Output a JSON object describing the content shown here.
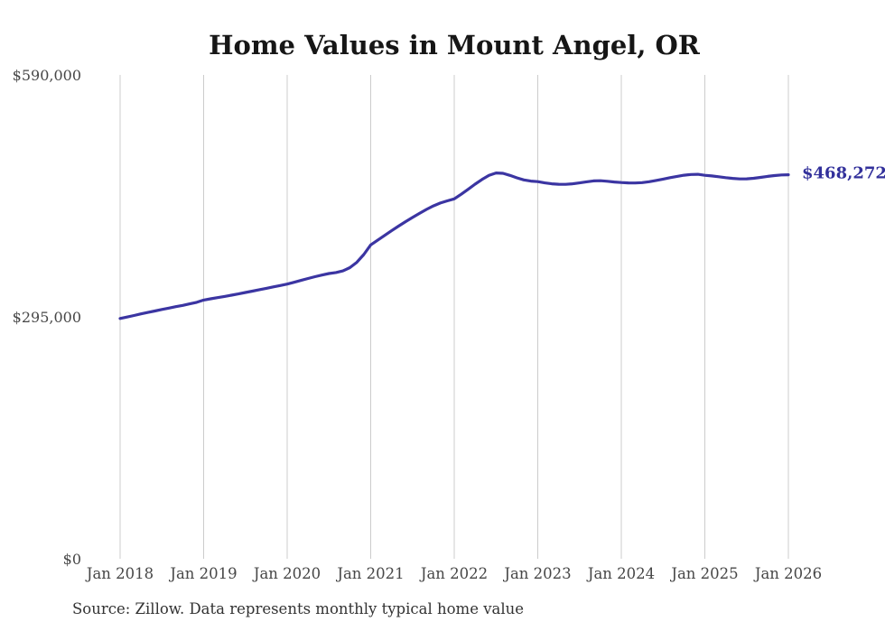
{
  "chart_data": {
    "type": "line",
    "title": "Home Values in Mount Angel, OR",
    "xlabel": "",
    "ylabel": "",
    "legend": "none",
    "grid": "vertical-only",
    "ylim": [
      0,
      590000
    ],
    "y_ticks": [
      {
        "label": "$0",
        "value": 0
      },
      {
        "label": "$295,000",
        "value": 295000
      },
      {
        "label": "$590,000",
        "value": 590000
      }
    ],
    "x_tick_labels": [
      "Jan 2018",
      "Jan 2019",
      "Jan 2020",
      "Jan 2021",
      "Jan 2022",
      "Jan 2023",
      "Jan 2024",
      "Jan 2025",
      "Jan 2026"
    ],
    "end_label": "$468,272",
    "series": [
      {
        "name": "Monthly typical home value",
        "start_month": "Jan 2018",
        "end_month": "Jan 2026",
        "interval": "monthly",
        "latest_value": 468272,
        "values": [
          293000,
          294800,
          296700,
          298600,
          300400,
          302200,
          304000,
          305700,
          307400,
          309000,
          310800,
          312700,
          315500,
          317000,
          318400,
          319900,
          321400,
          323000,
          324700,
          326400,
          328100,
          329800,
          331500,
          333200,
          335000,
          337200,
          339500,
          341800,
          344000,
          346000,
          347800,
          349000,
          351000,
          355000,
          361500,
          371000,
          382700,
          388500,
          394300,
          400000,
          405600,
          411000,
          416200,
          421200,
          426000,
          430300,
          433800,
          436500,
          438900,
          444500,
          450500,
          456800,
          462500,
          467500,
          470500,
          470000,
          467500,
          464500,
          462000,
          460500,
          459900,
          458300,
          457200,
          456700,
          456600,
          457200,
          458300,
          459700,
          460800,
          461000,
          460300,
          459400,
          458800,
          458300,
          458200,
          458700,
          459800,
          461300,
          463000,
          464700,
          466300,
          467700,
          468600,
          468800,
          467600,
          466800,
          465800,
          464700,
          463800,
          463200,
          463300,
          464000,
          465100,
          466300,
          467300,
          468000,
          468272
        ]
      }
    ]
  },
  "footer": {
    "source": "Source: Zillow. Data represents monthly typical home value"
  },
  "colors": {
    "line": "#3b35a2",
    "end_label": "#32309b",
    "gridline": "#cccccc",
    "background": "#ffffff",
    "title_text": "#161616",
    "axis_text": "#474747"
  }
}
